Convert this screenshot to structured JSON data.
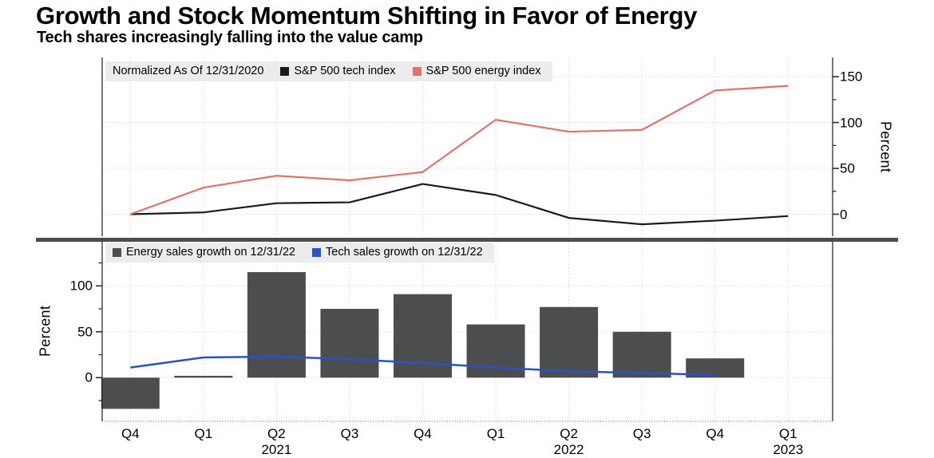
{
  "title": "Growth and Stock Momentum Shifting in Favor of Energy",
  "subtitle": "Tech shares increasingly falling into the value camp",
  "colors": {
    "background": "#ffffff",
    "grid": "#d8d8d8",
    "axis": "#2e2e2e",
    "x_axis_dots": "#8a8a8a",
    "separator": "#4d4d4d",
    "legend_bg": "#ececec",
    "text": "#000000"
  },
  "x_axis": {
    "labels": [
      {
        "quarter": "Q4"
      },
      {
        "quarter": "Q1"
      },
      {
        "quarter": "Q2",
        "year": "2021"
      },
      {
        "quarter": "Q3"
      },
      {
        "quarter": "Q4"
      },
      {
        "quarter": "Q1"
      },
      {
        "quarter": "Q2",
        "year": "2022"
      },
      {
        "quarter": "Q3"
      },
      {
        "quarter": "Q4"
      },
      {
        "quarter": "Q1",
        "year": "2023"
      }
    ]
  },
  "chart_data": [
    {
      "type": "line",
      "panel": "top",
      "note": "Normalized As Of 12/31/2020",
      "categories": [
        "Q4 2020",
        "Q1 2021",
        "Q2 2021",
        "Q3 2021",
        "Q4 2021",
        "Q1 2022",
        "Q2 2022",
        "Q3 2022",
        "Q4 2022",
        "Q1 2023"
      ],
      "series": [
        {
          "name": "S&P 500 tech index",
          "color": "#1a1a1a",
          "values": [
            0,
            2,
            12,
            13,
            33,
            21,
            -4,
            -11,
            -7,
            -2
          ]
        },
        {
          "name": "S&P 500 energy index",
          "color": "#dd736b",
          "values": [
            0,
            29,
            42,
            37,
            46,
            103,
            90,
            92,
            135,
            140
          ]
        }
      ],
      "ylabel": "Percent",
      "yticks": [
        0,
        50,
        100,
        150
      ],
      "ylim": [
        -25,
        171
      ],
      "axis_side": "right",
      "grid": true,
      "legend_position": "top-left"
    },
    {
      "type": "bar",
      "panel": "bottom",
      "categories": [
        "Q4 2020",
        "Q1 2021",
        "Q2 2021",
        "Q3 2021",
        "Q4 2021",
        "Q1 2022",
        "Q2 2022",
        "Q3 2022",
        "Q4 2022",
        "Q1 2023"
      ],
      "series": [
        {
          "name": "Energy sales growth on 12/31/22",
          "type": "bar",
          "color": "#4c4d4f",
          "values": [
            -34,
            2,
            115,
            75,
            91,
            58,
            77,
            50,
            21,
            null
          ]
        },
        {
          "name": "Tech sales growth on 12/31/22",
          "type": "line",
          "color": "#2a52c8",
          "values": [
            11,
            22,
            23,
            20,
            16,
            11,
            7,
            5,
            3,
            null
          ]
        }
      ],
      "ylabel": "Percent",
      "yticks": [
        0,
        50,
        100
      ],
      "ylim": [
        -48,
        148
      ],
      "axis_side": "left",
      "grid": true,
      "legend_position": "top-left"
    }
  ]
}
